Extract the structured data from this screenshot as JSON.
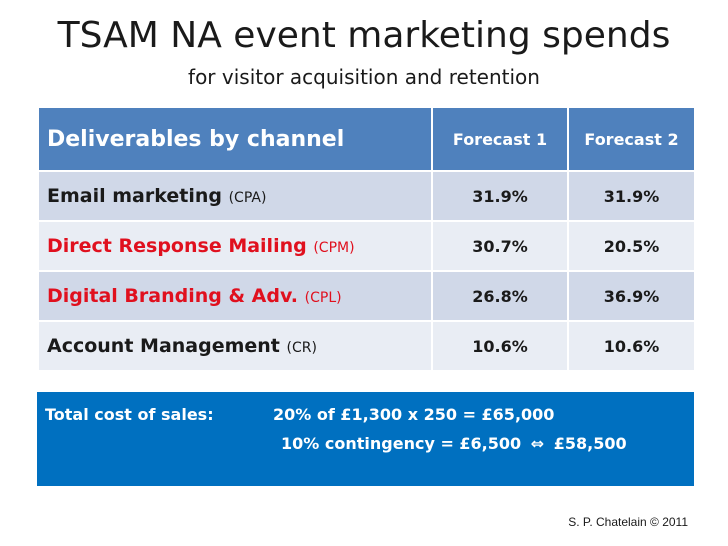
{
  "title": "TSAM NA event marketing spends",
  "subtitle": "for visitor acquisition and retention",
  "table": {
    "header": {
      "channel": "Deliverables by channel",
      "forecast1": "Forecast 1",
      "forecast2": "Forecast 2"
    },
    "rows": [
      {
        "name": "Email marketing",
        "abbr": "(CPA)",
        "f1": "31.9%",
        "f2": "31.9%"
      },
      {
        "name": "Direct Response Mailing",
        "abbr": "(CPM)",
        "f1": "30.7%",
        "f2": "20.5%"
      },
      {
        "name": "Digital Branding & Adv.",
        "abbr": "(CPL)",
        "f1": "26.8%",
        "f2": "36.9%"
      },
      {
        "name": "Account Management",
        "abbr": "(CR)",
        "f1": "10.6%",
        "f2": "10.6%"
      }
    ]
  },
  "total": {
    "label": "Total  cost of sales:",
    "line1": "20% of £1,300 x 250 = £65,000",
    "line2_pre": "10% contingency = £6,500",
    "arrow": "⇔",
    "line2_post": "£58,500"
  },
  "credit": "S. P. Chatelain © 2011",
  "colors": {
    "header_blue": "#4f81bd",
    "row_light_blue": "#d0d8e8",
    "row_pale_blue": "#e9edf4",
    "total_blue": "#0070c0",
    "highlight_red": "#e0101e"
  }
}
